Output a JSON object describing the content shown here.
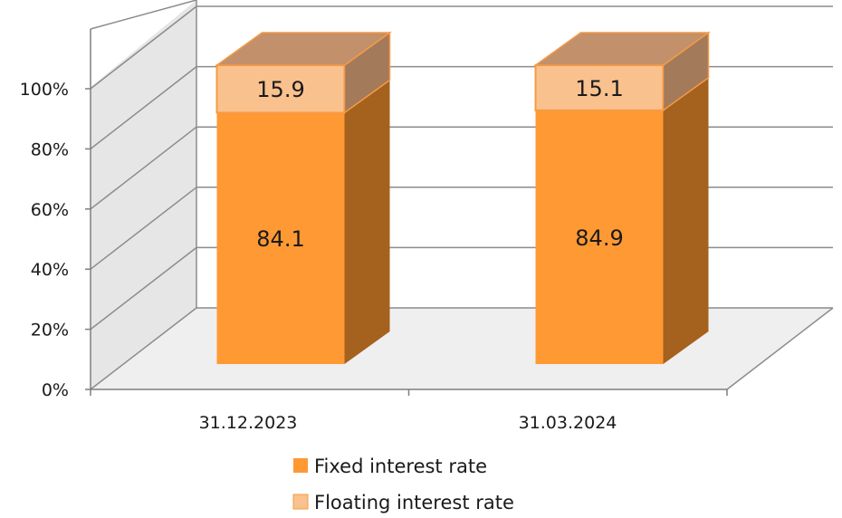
{
  "chart_data": {
    "type": "bar",
    "stacked": true,
    "three_d": true,
    "categories": [
      "31.12.2023",
      "31.03.2024"
    ],
    "series": [
      {
        "name": "Fixed interest rate",
        "values": [
          84.1,
          84.9
        ],
        "labels": [
          "84.1",
          "84.9"
        ],
        "color": "#FF9933",
        "side_color": "#A5611E",
        "top_color": "#FF9933"
      },
      {
        "name": "Floating interest rate",
        "values": [
          15.9,
          15.1
        ],
        "labels": [
          "15.9",
          "15.1"
        ],
        "color": "#F9C18D",
        "side_color": "#A37A5A",
        "top_color": "#C2906B"
      }
    ],
    "y_ticks": [
      "0%",
      "20%",
      "40%",
      "60%",
      "80%",
      "100%"
    ],
    "ylim": [
      0,
      100
    ],
    "grid": true,
    "legend_position": "bottom",
    "legend": [
      {
        "label": "Fixed interest rate",
        "color": "#FF9933"
      },
      {
        "label": "Floating interest rate",
        "color": "#F9C18D"
      }
    ]
  }
}
